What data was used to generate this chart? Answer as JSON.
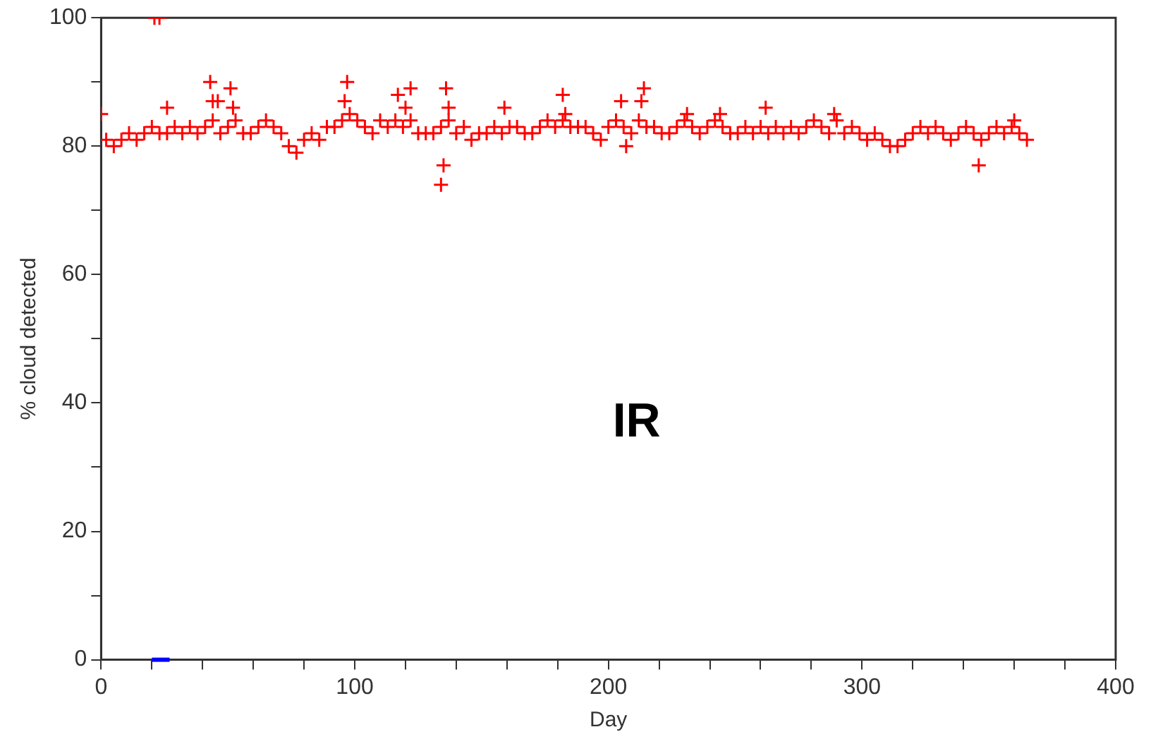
{
  "chart_data": {
    "type": "scatter",
    "xlabel": "Day",
    "ylabel": "% cloud detected",
    "annotations": [
      "IR"
    ],
    "xlim": [
      0,
      400
    ],
    "ylim": [
      0,
      100
    ],
    "xticks": [
      0,
      {
        "value": 20,
        "label": null
      },
      {
        "value": 40,
        "label": null
      },
      {
        "value": 60,
        "label": null
      },
      {
        "value": 80,
        "label": null
      },
      100,
      {
        "value": 120,
        "label": null
      },
      {
        "value": 140,
        "label": null
      },
      {
        "value": 160,
        "label": null
      },
      {
        "value": 180,
        "label": null
      },
      200,
      {
        "value": 220,
        "label": null
      },
      {
        "value": 240,
        "label": null
      },
      {
        "value": 260,
        "label": null
      },
      {
        "value": 280,
        "label": null
      },
      300,
      {
        "value": 320,
        "label": null
      },
      {
        "value": 340,
        "label": null
      },
      {
        "value": 360,
        "label": null
      },
      {
        "value": 380,
        "label": null
      },
      400
    ],
    "yticks": [
      0,
      {
        "value": 10,
        "label": null
      },
      20,
      {
        "value": 30,
        "label": null
      },
      40,
      {
        "value": 50,
        "label": null
      },
      60,
      {
        "value": 70,
        "label": null
      },
      80,
      {
        "value": 90,
        "label": null
      },
      100
    ],
    "grid": false,
    "legend": false,
    "marker": "cross",
    "series": [
      {
        "color": "#ff0000",
        "x": [
          2,
          5,
          8,
          11,
          14,
          17,
          20,
          23,
          26,
          29,
          32,
          35,
          38,
          41,
          44,
          47,
          50,
          53,
          56,
          59,
          62,
          65,
          68,
          71,
          74,
          77,
          80,
          83,
          86,
          89,
          92,
          95,
          98,
          101,
          104,
          107,
          110,
          113,
          116,
          119,
          122,
          125,
          128,
          131,
          134,
          137,
          140,
          143,
          146,
          149,
          152,
          155,
          158,
          161,
          164,
          167,
          170,
          173,
          176,
          179,
          182,
          185,
          188,
          191,
          194,
          197,
          200,
          203,
          206,
          209,
          212,
          215,
          218,
          221,
          224,
          227,
          230,
          233,
          236,
          239,
          242,
          245,
          248,
          251,
          254,
          257,
          260,
          263,
          266,
          269,
          272,
          275,
          278,
          281,
          284,
          287,
          290,
          293,
          296,
          299,
          302,
          305,
          308,
          311,
          314,
          317,
          320,
          323,
          326,
          329,
          332,
          335,
          338,
          341,
          344,
          347,
          350,
          353,
          356,
          359,
          362,
          365,
          0,
          21,
          23,
          26,
          43,
          44,
          46,
          51,
          52,
          96,
          97,
          117,
          120,
          122,
          134,
          135,
          136,
          137,
          159,
          182,
          183,
          205,
          207,
          213,
          214,
          231,
          244,
          262,
          289,
          346,
          360
        ],
        "values": [
          81,
          80,
          81,
          82,
          81,
          82,
          83,
          82,
          82,
          83,
          82,
          83,
          82,
          83,
          84,
          82,
          83,
          84,
          82,
          82,
          83,
          84,
          83,
          82,
          80,
          79,
          81,
          82,
          81,
          83,
          83,
          84,
          85,
          84,
          83,
          82,
          84,
          83,
          84,
          83,
          84,
          82,
          82,
          82,
          83,
          84,
          82,
          83,
          81,
          82,
          82,
          83,
          82,
          83,
          83,
          82,
          82,
          83,
          84,
          83,
          84,
          83,
          83,
          83,
          82,
          81,
          83,
          84,
          83,
          82,
          84,
          83,
          83,
          82,
          82,
          83,
          84,
          83,
          82,
          83,
          84,
          83,
          82,
          82,
          83,
          82,
          83,
          82,
          83,
          82,
          83,
          82,
          83,
          84,
          83,
          82,
          84,
          82,
          83,
          82,
          81,
          82,
          81,
          80,
          80,
          81,
          82,
          83,
          82,
          83,
          82,
          81,
          82,
          83,
          82,
          81,
          82,
          83,
          82,
          83,
          82,
          81,
          85,
          100,
          100,
          86,
          90,
          87,
          87,
          89,
          86,
          87,
          90,
          88,
          86,
          89,
          74,
          77,
          89,
          86,
          86,
          88,
          85,
          87,
          80,
          87,
          89,
          85,
          85,
          86,
          85,
          77,
          84
        ]
      },
      {
        "type": "line",
        "marker": "none",
        "color": "#0000ff",
        "x": [
          20,
          27
        ],
        "values": [
          0,
          0
        ]
      }
    ]
  }
}
